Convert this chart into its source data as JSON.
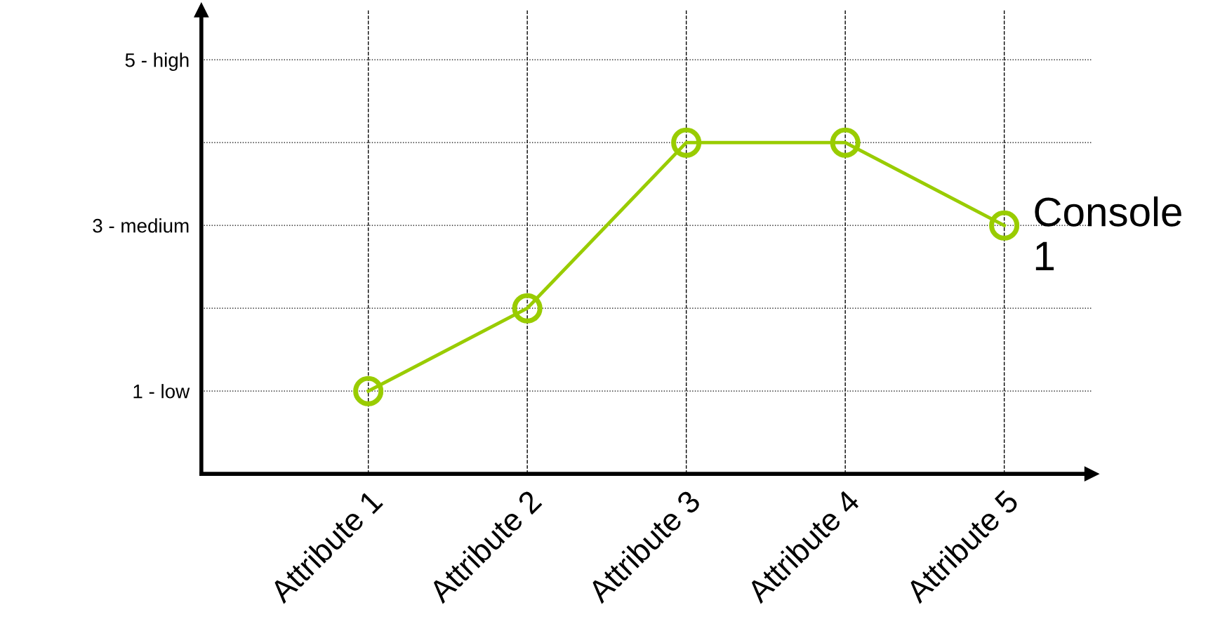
{
  "chart_data": {
    "type": "line",
    "categories": [
      "Attribute 1",
      "Attribute 2",
      "Attribute 3",
      "Attribute 4",
      "Attribute 5"
    ],
    "series": [
      {
        "name": "Console 1",
        "color": "#99cc00",
        "values": [
          1,
          2,
          4,
          4,
          3
        ]
      }
    ],
    "ylim": [
      0,
      5.6
    ],
    "yticks": [
      {
        "value": 1,
        "label": "1 - low"
      },
      {
        "value": 2,
        "label": null
      },
      {
        "value": 3,
        "label": "3 - medium"
      },
      {
        "value": 4,
        "label": null
      },
      {
        "value": 5,
        "label": "5 - high"
      }
    ],
    "grid": true,
    "marker": "circle",
    "line_style": "solid"
  }
}
